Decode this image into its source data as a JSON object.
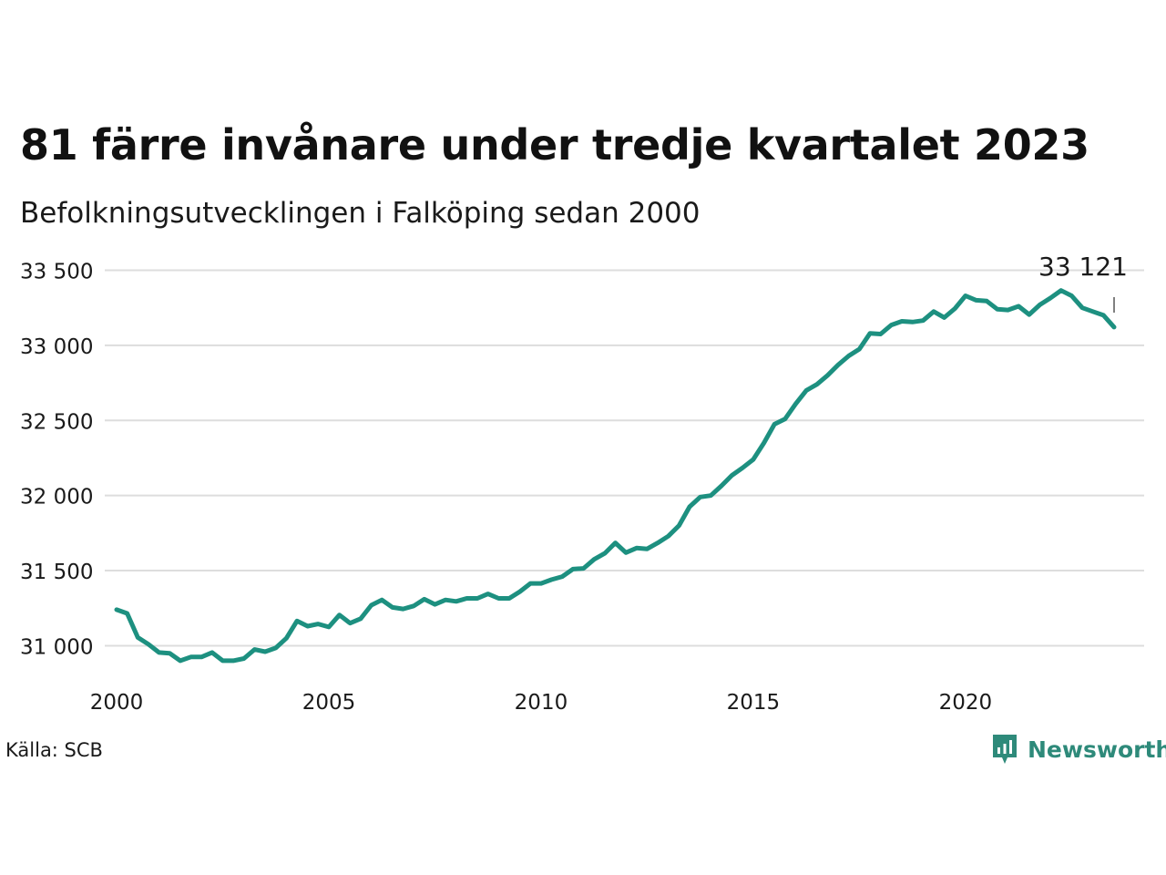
{
  "title": "81 färre invånare under tredje kvartalet 2023",
  "subtitle": "Befolkningsutvecklingen i Falköping sedan 2000",
  "source": "Källa: SCB",
  "brand": {
    "name": "Newsworthy",
    "logo_icon": "newsworthy-chart-icon",
    "color": "#2e8a7a"
  },
  "colors": {
    "line": "#1d9080",
    "grid": "#dddddd",
    "annotation_line": "#555555"
  },
  "chart_data": {
    "type": "line",
    "title": "81 färre invånare under tredje kvartalet 2023",
    "subtitle": "Befolkningsutvecklingen i Falköping sedan 2000",
    "xlabel": "",
    "ylabel": "",
    "xlim": [
      2000,
      2024
    ],
    "ylim": [
      30760,
      33600
    ],
    "grid": true,
    "legend": "none",
    "x_ticks": [
      2000,
      2005,
      2010,
      2015,
      2020
    ],
    "x_tick_labels": [
      "2000",
      "2005",
      "2010",
      "2015",
      "2020"
    ],
    "y_ticks": [
      31000,
      31500,
      32000,
      32500,
      33000,
      33500
    ],
    "y_tick_labels": [
      "31 000",
      "31 500",
      "32 000",
      "32 500",
      "33 000",
      "33 500"
    ],
    "annotation": {
      "text": "33 121",
      "x": 2023.5,
      "y": 33121
    },
    "series": [
      {
        "x": [
          2000.0,
          2000.25,
          2000.5,
          2000.75,
          2001.0,
          2001.25,
          2001.5,
          2001.75,
          2002.0,
          2002.25,
          2002.5,
          2002.75,
          2003.0,
          2003.25,
          2003.5,
          2003.75,
          2004.0,
          2004.25,
          2004.5,
          2004.75,
          2005.0,
          2005.25,
          2005.5,
          2005.75,
          2006.0,
          2006.25,
          2006.5,
          2006.75,
          2007.0,
          2007.25,
          2007.5,
          2007.75,
          2008.0,
          2008.25,
          2008.5,
          2008.75,
          2009.0,
          2009.25,
          2009.5,
          2009.75,
          2010.0,
          2010.25,
          2010.5,
          2010.75,
          2011.0,
          2011.25,
          2011.5,
          2011.75,
          2012.0,
          2012.25,
          2012.5,
          2012.75,
          2013.0,
          2013.25,
          2013.5,
          2013.75,
          2014.0,
          2014.25,
          2014.5,
          2014.75,
          2015.0,
          2015.25,
          2015.5,
          2015.75,
          2016.0,
          2016.25,
          2016.5,
          2016.75,
          2017.0,
          2017.25,
          2017.5,
          2017.75,
          2018.0,
          2018.25,
          2018.5,
          2018.75,
          2019.0,
          2019.25,
          2019.5,
          2019.75,
          2020.0,
          2020.25,
          2020.5,
          2020.75,
          2021.0,
          2021.25,
          2021.5,
          2021.75,
          2022.0,
          2022.25,
          2022.5,
          2022.75,
          2023.0,
          2023.25,
          2023.5
        ],
        "values": [
          31240,
          31215,
          31055,
          31010,
          30955,
          30950,
          30900,
          30925,
          30925,
          30955,
          30900,
          30900,
          30915,
          30975,
          30960,
          30985,
          31050,
          31165,
          31130,
          31145,
          31125,
          31205,
          31150,
          31180,
          31270,
          31305,
          31255,
          31245,
          31265,
          31310,
          31275,
          31305,
          31295,
          31315,
          31315,
          31345,
          31315,
          31315,
          31360,
          31415,
          31415,
          31440,
          31460,
          31510,
          31515,
          31575,
          31615,
          31685,
          31620,
          31650,
          31645,
          31685,
          31730,
          31800,
          31925,
          31990,
          32000,
          32065,
          32135,
          32185,
          32240,
          32350,
          32475,
          32510,
          32610,
          32700,
          32740,
          32800,
          32870,
          32930,
          32975,
          33080,
          33075,
          33135,
          33160,
          33155,
          33165,
          33225,
          33185,
          33245,
          33330,
          33300,
          33295,
          33240,
          33235,
          33260,
          33205,
          33270,
          33315,
          33365,
          33330,
          33250,
          33225,
          33200,
          33121
        ]
      }
    ]
  }
}
